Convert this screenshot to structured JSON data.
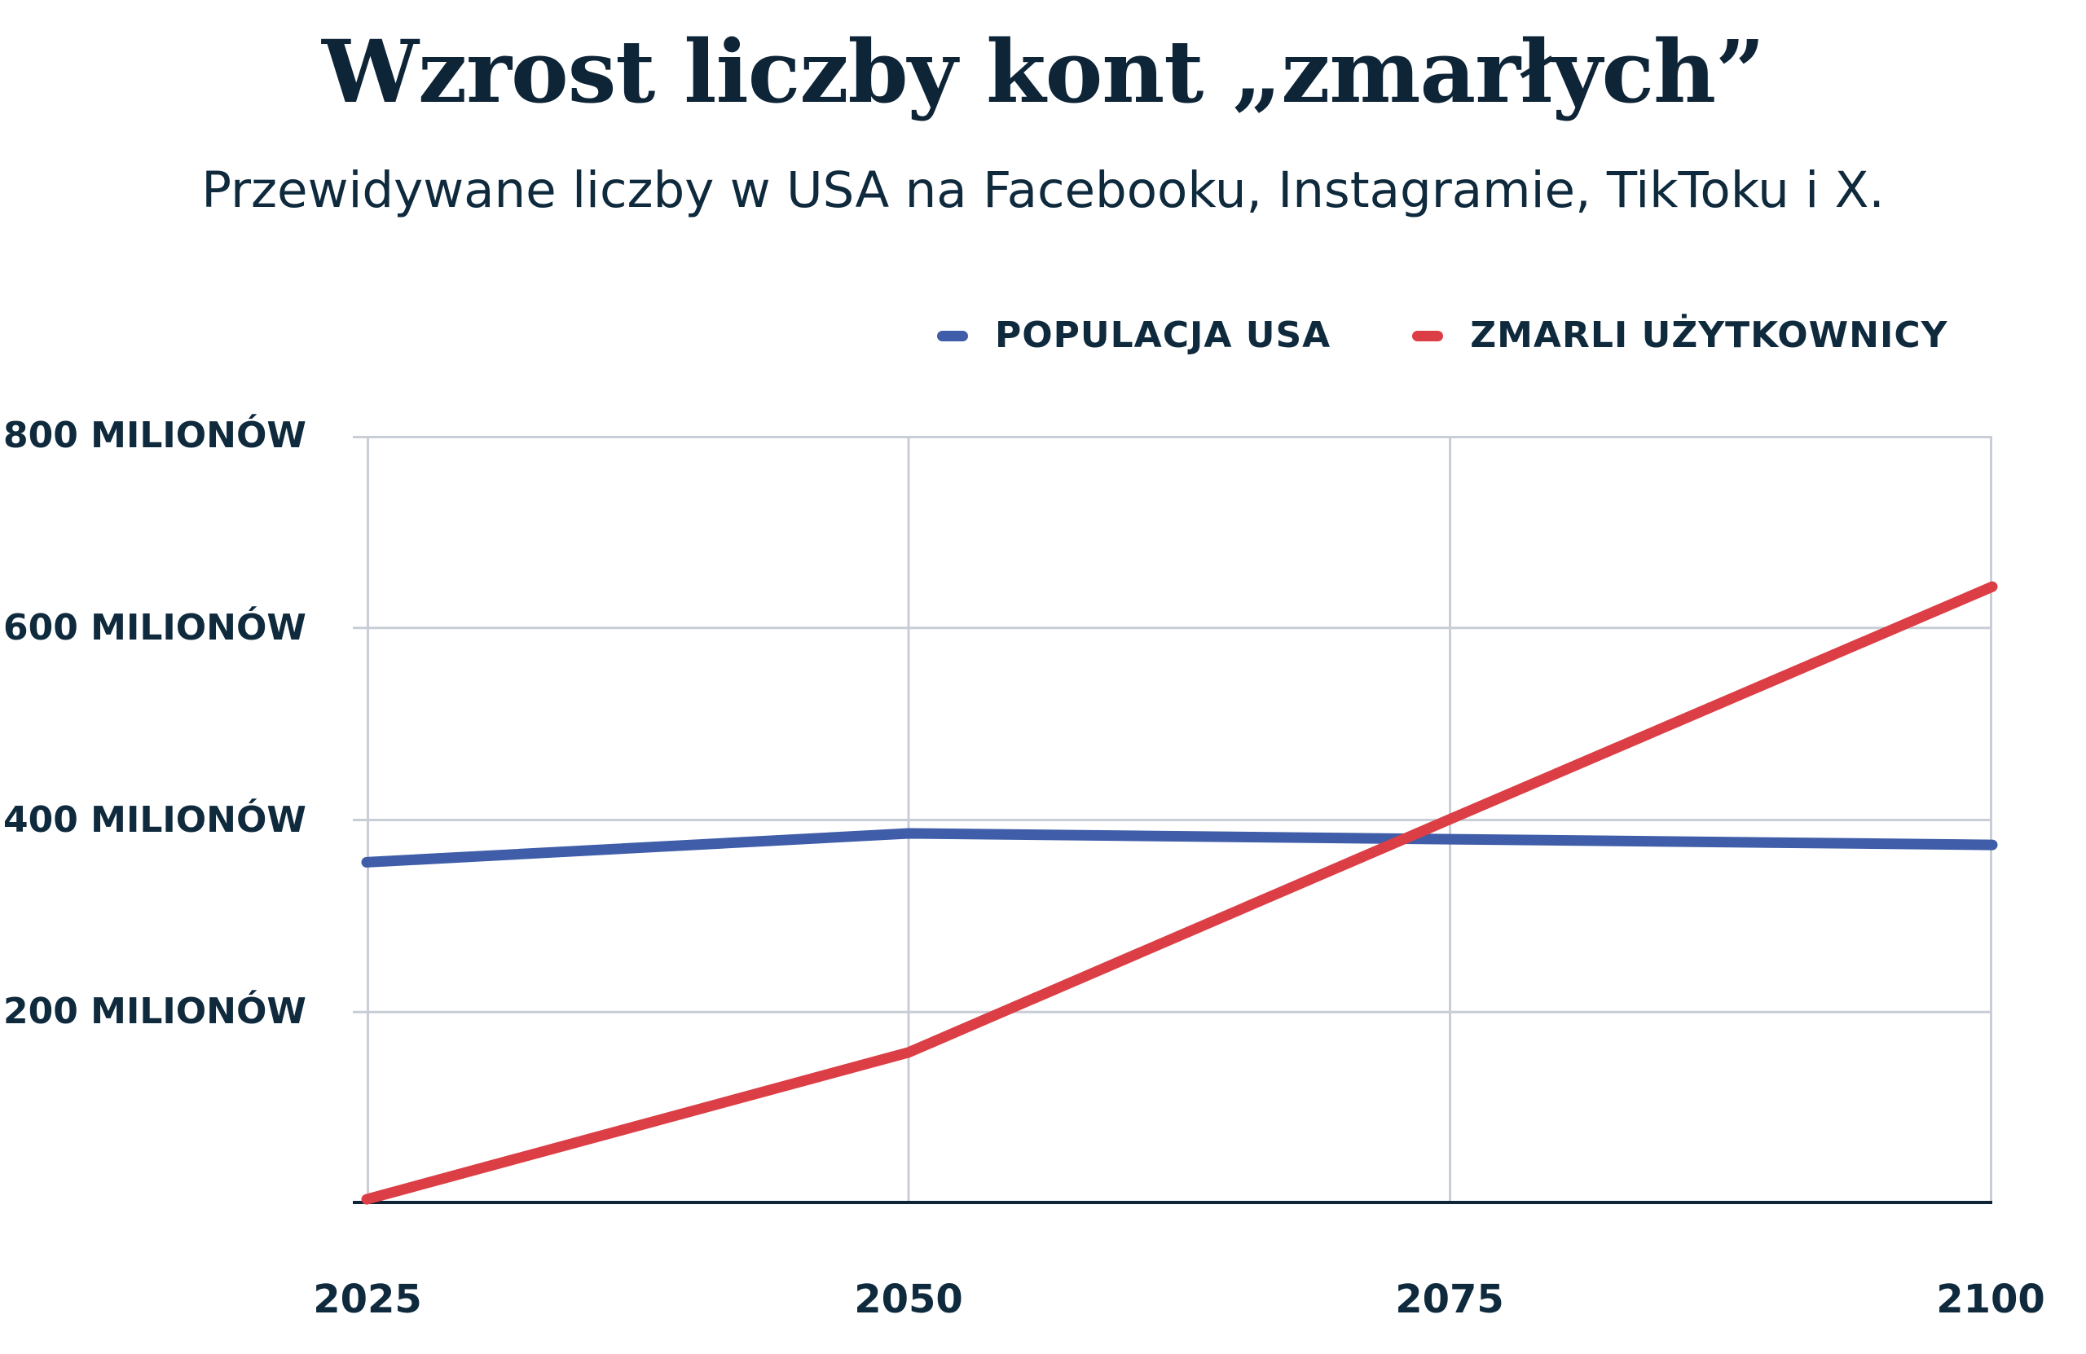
{
  "title": "Wzrost liczby kont „zmarłych”",
  "subtitle": "Przewidywane liczby w USA na Facebooku, Instagramie, TikToku i X.",
  "legend": [
    {
      "label": "POPULACJA USA",
      "color": "#3f5da8"
    },
    {
      "label": "ZMARLI UŻYTKOWNICY",
      "color": "#dc3e45"
    }
  ],
  "colors": {
    "text_navy": "#0f2a3d",
    "grid_gray": "#c8cdd6",
    "axis_navy": "#0e2437",
    "population_blue": "#3f5da8",
    "deceased_red": "#dc3e45"
  },
  "chart_data": {
    "type": "line",
    "title": "Wzrost liczby kont „zmarłych”",
    "subtitle": "Przewidywane liczby w USA na Facebooku, Instagramie, TikToku i X.",
    "x": [
      2025,
      2050,
      2075,
      2100
    ],
    "series": [
      {
        "name": "POPULACJA USA",
        "color": "#3f5da8",
        "values": [
          356,
          386,
          380,
          374
        ]
      },
      {
        "name": "ZMARLI UŻYTKOWNICY",
        "color": "#dc3e45",
        "values": [
          5,
          158,
          401,
          643
        ]
      }
    ],
    "units": "miliony",
    "ylim": [
      0,
      800
    ],
    "yticks": [
      {
        "value": 800,
        "label": "800 MILIONÓW"
      },
      {
        "value": 600,
        "label": "600 MILIONÓW"
      },
      {
        "value": 400,
        "label": "400 MILIONÓW"
      },
      {
        "value": 200,
        "label": "200 MILIONÓW"
      }
    ],
    "xticks": [
      "2025",
      "2050",
      "2075",
      "2100"
    ],
    "grid": true,
    "legend_position": "top-right"
  }
}
